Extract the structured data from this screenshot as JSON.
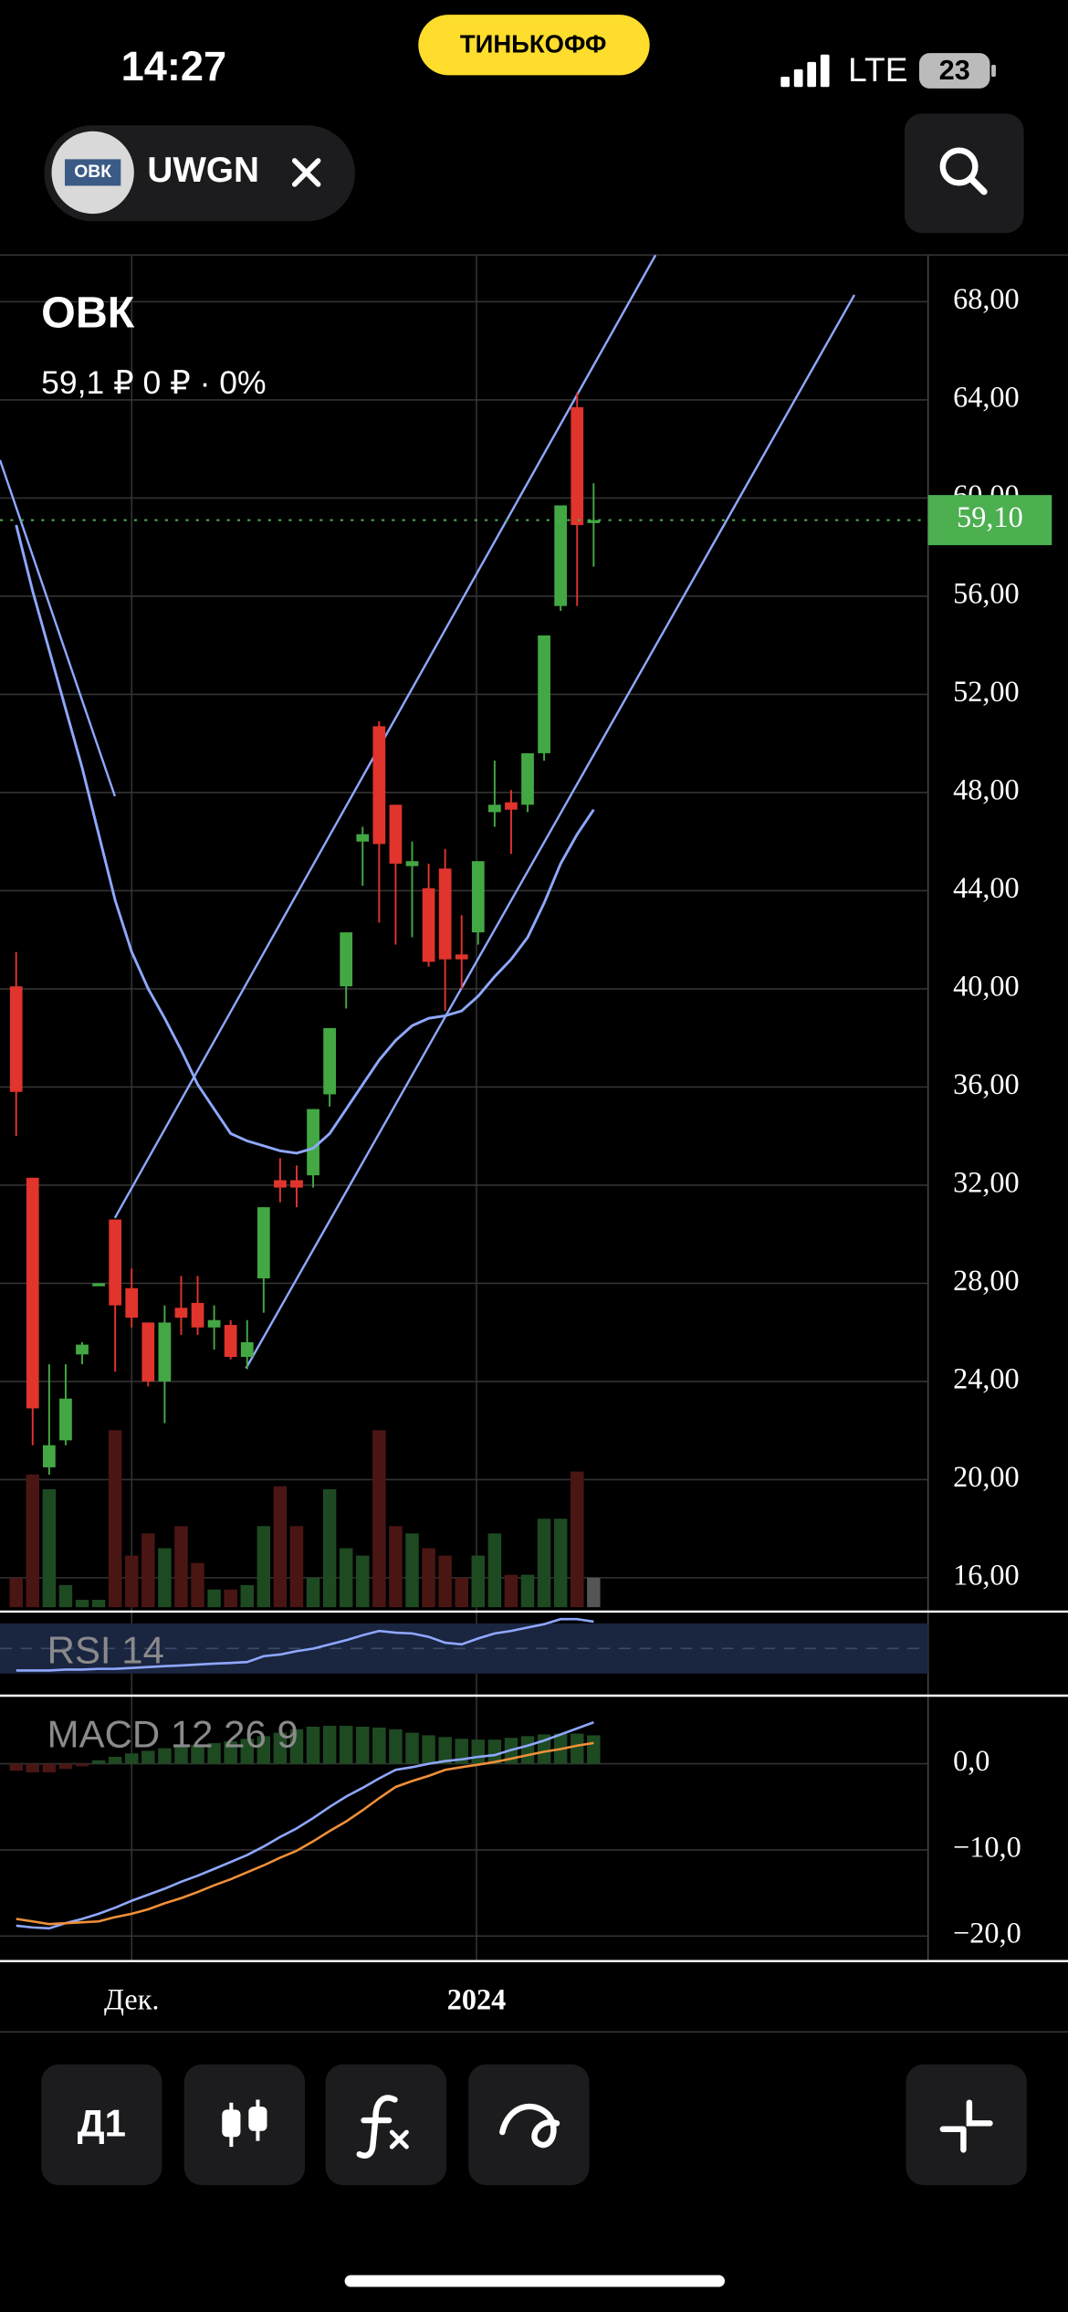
{
  "status_bar": {
    "time": "14:27",
    "carrier": "ТИНЬКОФФ",
    "network": "LTE",
    "battery": "23"
  },
  "ticker": {
    "logo": "ОВК",
    "symbol": "UWGN"
  },
  "toolbar": {
    "interval": "Д1"
  },
  "chart_data": [
    {
      "type": "candlestick",
      "title": "ОВК",
      "subtitle": "59,1 ₽  0 ₽ · 0%",
      "open": [
        40.1,
        32.3,
        20.5,
        21.6,
        25.1,
        27.9,
        30.6,
        27.8,
        26.4,
        24.0,
        27.0,
        27.2,
        26.2,
        26.3,
        25.0,
        28.2,
        32.2,
        32.2,
        32.4,
        35.7,
        40.1,
        46.0,
        50.7,
        47.5,
        45.0,
        44.1,
        44.9,
        41.4,
        42.3,
        47.2,
        47.6,
        47.5,
        49.6,
        55.6,
        63.7,
        59.1
      ],
      "high": [
        41.5,
        32.3,
        24.7,
        24.7,
        25.6,
        28.0,
        30.6,
        28.6,
        26.4,
        27.1,
        28.3,
        28.3,
        27.1,
        26.5,
        26.5,
        31.1,
        33.1,
        32.8,
        35.1,
        38.4,
        42.3,
        46.6,
        50.9,
        47.5,
        46.0,
        45.1,
        45.7,
        43.0,
        45.2,
        49.3,
        48.1,
        49.6,
        54.4,
        59.7,
        64.3,
        60.6
      ],
      "low": [
        34.0,
        21.4,
        20.2,
        21.4,
        24.7,
        27.9,
        24.4,
        26.2,
        23.8,
        22.3,
        25.9,
        25.9,
        25.3,
        24.9,
        24.5,
        26.8,
        31.3,
        31.1,
        31.9,
        35.2,
        39.2,
        44.2,
        42.7,
        41.8,
        42.1,
        40.9,
        39.1,
        40.0,
        41.8,
        46.6,
        45.5,
        47.2,
        49.3,
        55.4,
        55.6,
        57.2
      ],
      "close": [
        35.8,
        22.9,
        21.4,
        23.3,
        25.5,
        28.0,
        27.1,
        26.6,
        24.0,
        26.4,
        26.6,
        26.2,
        26.5,
        25.0,
        25.6,
        31.1,
        31.9,
        31.9,
        35.1,
        38.4,
        42.3,
        46.3,
        45.9,
        45.1,
        45.2,
        41.1,
        41.2,
        41.2,
        45.2,
        47.5,
        47.3,
        49.6,
        54.4,
        59.7,
        58.9,
        59.1
      ],
      "volume": [
        20,
        90,
        80,
        15,
        5,
        5,
        120,
        35,
        50,
        40,
        55,
        30,
        12,
        12,
        15,
        55,
        82,
        55,
        20,
        80,
        40,
        35,
        120,
        55,
        50,
        40,
        35,
        20,
        35,
        50,
        22,
        22,
        60,
        60,
        92,
        20
      ],
      "ma": [
        58.9,
        56.2,
        53.8,
        51.4,
        49.0,
        46.3,
        43.6,
        41.5,
        40.0,
        38.8,
        37.5,
        36.1,
        35.1,
        34.1,
        33.8,
        33.6,
        33.4,
        33.3,
        33.5,
        34.1,
        35.1,
        36.1,
        37.1,
        37.9,
        38.5,
        38.8,
        38.9,
        39.1,
        39.7,
        40.5,
        41.2,
        42.1,
        43.5,
        45.1,
        46.3,
        47.3
      ],
      "ma_color": "#8fa8ff",
      "up_color": "#43a843",
      "down_color": "#e0342c",
      "up_volume_color": "#1e4a22",
      "down_volume_color": "#4a1614",
      "flat_volume_color": "#555555",
      "last_price": {
        "value": 59.1,
        "label": "59,10"
      },
      "last_price_color": "#4caf50",
      "xlim": [
        -0.98,
        55.27
      ],
      "xticks": [
        {
          "value": 7,
          "label": "Дек."
        },
        {
          "value": 27.9,
          "label": "2024"
        }
      ],
      "ylim": [
        14.8,
        69.9
      ],
      "yticks": [
        {
          "value": 68,
          "label": "68,00"
        },
        {
          "value": 64,
          "label": "64,00"
        },
        {
          "value": 60,
          "label": "60,00"
        },
        {
          "value": 56,
          "label": "56,00"
        },
        {
          "value": 52,
          "label": "52,00"
        },
        {
          "value": 48,
          "label": "48,00"
        },
        {
          "value": 44,
          "label": "44,00"
        },
        {
          "value": 40,
          "label": "40,00"
        },
        {
          "value": 36,
          "label": "36,00"
        },
        {
          "value": 32,
          "label": "32,00"
        },
        {
          "value": 28,
          "label": "28,00"
        },
        {
          "value": 24,
          "label": "24,00"
        },
        {
          "value": 20,
          "label": "20,00"
        },
        {
          "value": 16,
          "label": "16,00"
        }
      ],
      "grid": true
    },
    {
      "type": "line",
      "title": "RSI 14",
      "values": [
        30,
        30,
        30,
        31,
        31,
        32,
        32,
        33,
        34,
        35,
        36,
        37,
        38,
        39,
        40,
        47,
        49,
        53,
        56,
        61,
        66,
        72,
        77,
        75,
        74,
        70,
        63,
        61,
        68,
        74,
        77,
        81,
        85,
        91,
        91,
        88
      ],
      "color": "#8fa8ff",
      "ylim": [
        0,
        100
      ]
    },
    {
      "type": "macd",
      "title": "MACD 12 26 9",
      "series": [
        {
          "color": "#8fa8ff",
          "values": [
            -18.8,
            -19.0,
            -19.1,
            -18.5,
            -18.0,
            -17.4,
            -16.7,
            -15.9,
            -15.2,
            -14.5,
            -13.7,
            -13.0,
            -12.2,
            -11.4,
            -10.6,
            -9.6,
            -8.5,
            -7.5,
            -6.3,
            -5.0,
            -3.8,
            -2.8,
            -1.7,
            -0.7,
            -0.4,
            0.0,
            0.3,
            0.5,
            0.8,
            1.0,
            1.6,
            2.1,
            2.7,
            3.4,
            4.1,
            4.8
          ]
        },
        {
          "color": "#f0903a",
          "values": [
            -18.0,
            -18.3,
            -18.6,
            -18.5,
            -18.4,
            -18.3,
            -17.8,
            -17.4,
            -16.9,
            -16.2,
            -15.6,
            -14.9,
            -14.1,
            -13.4,
            -12.6,
            -11.8,
            -10.9,
            -10.1,
            -9.0,
            -7.8,
            -6.7,
            -5.4,
            -4.0,
            -2.7,
            -2.0,
            -1.4,
            -0.7,
            -0.4,
            -0.1,
            0.2,
            0.6,
            1.0,
            1.4,
            1.7,
            2.1,
            2.4
          ]
        }
      ],
      "histogram": [
        -0.8,
        -1.0,
        -1.0,
        -0.6,
        -0.3,
        0.4,
        0.8,
        1.2,
        1.5,
        1.8,
        2.0,
        2.2,
        2.4,
        2.6,
        2.9,
        3.2,
        3.6,
        4.0,
        4.3,
        4.4,
        4.4,
        4.3,
        4.2,
        4.0,
        3.6,
        3.3,
        3.1,
        2.9,
        2.8,
        2.8,
        3.0,
        3.2,
        3.4,
        3.5,
        3.5,
        3.3
      ],
      "histogram_up_color": "#1e4a22",
      "histogram_down_color": "#4a1614",
      "ylim": [
        -22.9,
        7.9
      ],
      "yticks": [
        {
          "value": 0,
          "label": "0,0"
        },
        {
          "value": -10,
          "label": "−10,0"
        },
        {
          "value": -20,
          "label": "−20,0"
        }
      ],
      "grid": true
    }
  ]
}
